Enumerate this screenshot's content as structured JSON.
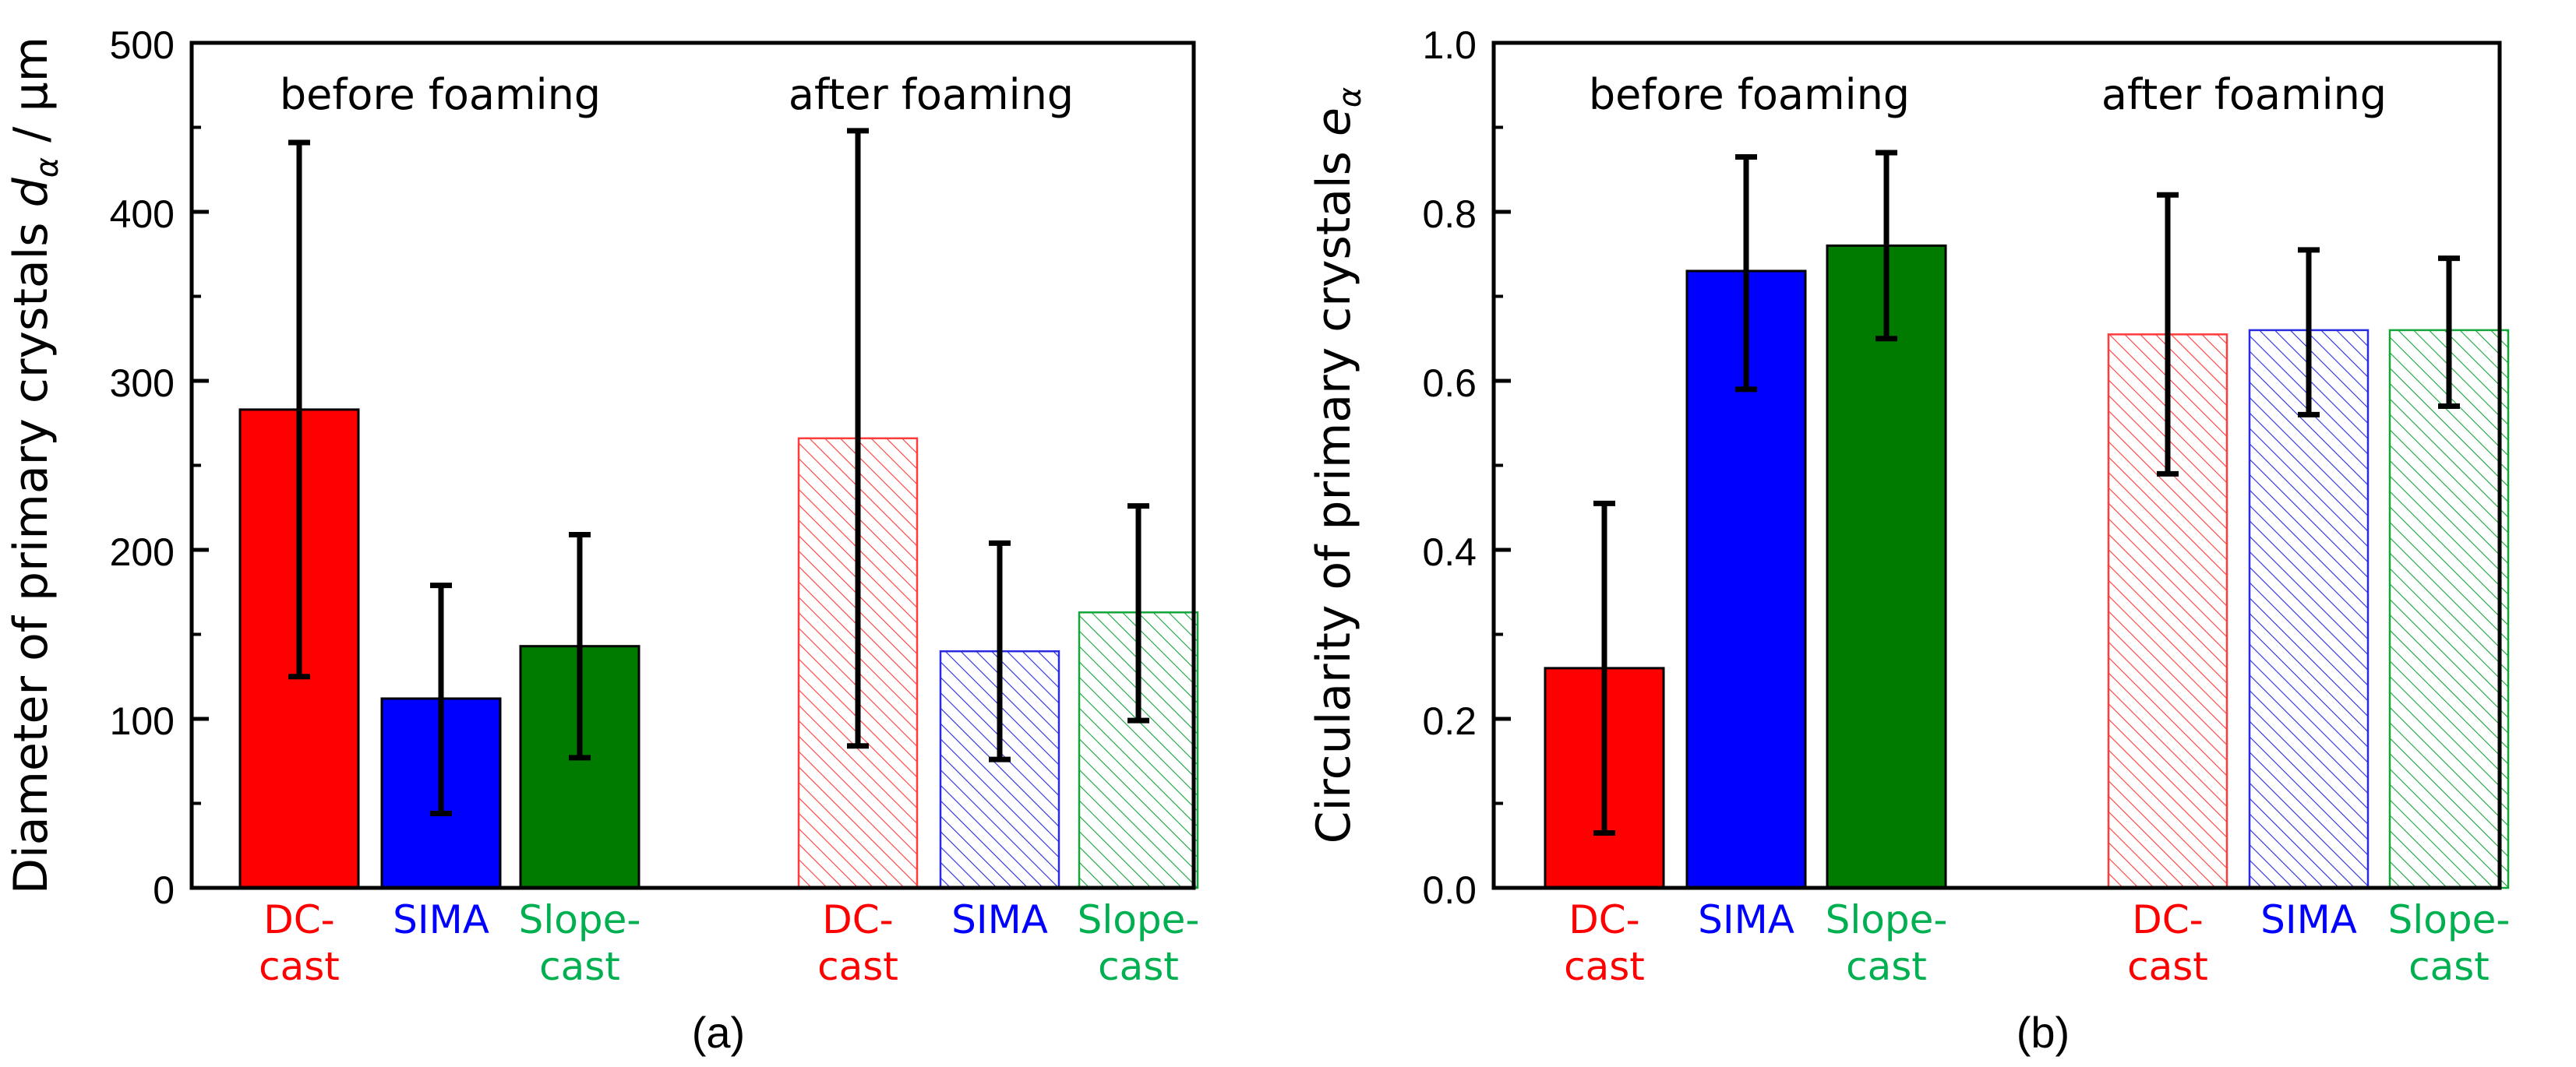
{
  "chart_data": [
    {
      "type": "bar",
      "panel_label": "(a)",
      "ylabel_text": "Diameter of primary crystals ",
      "ylabel_symbol": "d",
      "ylabel_subscript": "α",
      "ylabel_suffix": " / μm",
      "ylim": [
        0,
        500
      ],
      "yticks": [
        0,
        100,
        200,
        300,
        400,
        500
      ],
      "ytick_labels": [
        "0",
        "100",
        "200",
        "300",
        "400",
        "500"
      ],
      "group_titles": [
        "before foaming",
        "after foaming"
      ],
      "categories": [
        [
          "DC-",
          "cast"
        ],
        [
          "SIMA"
        ],
        [
          "Slope-",
          "cast"
        ]
      ],
      "category_colors": [
        "#ff0000",
        "#0000ff",
        "#00b050"
      ],
      "series": [
        {
          "name": "before foaming",
          "style": "solid",
          "values": [
            283,
            112,
            143
          ],
          "error_low": [
            125,
            44,
            77
          ],
          "error_high": [
            441,
            179,
            209
          ]
        },
        {
          "name": "after foaming",
          "style": "hatched",
          "values": [
            266,
            140,
            163
          ],
          "error_low": [
            84,
            76,
            99
          ],
          "error_high": [
            448,
            204,
            226
          ]
        }
      ]
    },
    {
      "type": "bar",
      "panel_label": "(b)",
      "ylabel_text": "Circularity of primary crystals ",
      "ylabel_symbol": "e",
      "ylabel_subscript": "α",
      "ylabel_suffix": "",
      "ylim": [
        0,
        1.0
      ],
      "yticks": [
        0,
        0.2,
        0.4,
        0.6,
        0.8,
        1.0
      ],
      "ytick_labels": [
        "0.0",
        "0.2",
        "0.4",
        "0.6",
        "0.8",
        "1.0"
      ],
      "group_titles": [
        "before foaming",
        "after foaming"
      ],
      "categories": [
        [
          "DC-",
          "cast"
        ],
        [
          "SIMA"
        ],
        [
          "Slope-",
          "cast"
        ]
      ],
      "category_colors": [
        "#ff0000",
        "#0000ff",
        "#00b050"
      ],
      "series": [
        {
          "name": "before foaming",
          "style": "solid",
          "values": [
            0.26,
            0.73,
            0.76
          ],
          "error_low": [
            0.065,
            0.59,
            0.65
          ],
          "error_high": [
            0.455,
            0.865,
            0.87
          ]
        },
        {
          "name": "after foaming",
          "style": "hatched",
          "values": [
            0.655,
            0.66,
            0.66
          ],
          "error_low": [
            0.49,
            0.56,
            0.57
          ],
          "error_high": [
            0.82,
            0.755,
            0.745
          ]
        }
      ]
    }
  ],
  "colors": {
    "solid_fills": [
      "#ff0000",
      "#0000ff",
      "#007b00"
    ],
    "hatch_strokes": [
      "#ff3b3b",
      "#2a2ae0",
      "#15a53a"
    ],
    "axis": "#000000"
  }
}
